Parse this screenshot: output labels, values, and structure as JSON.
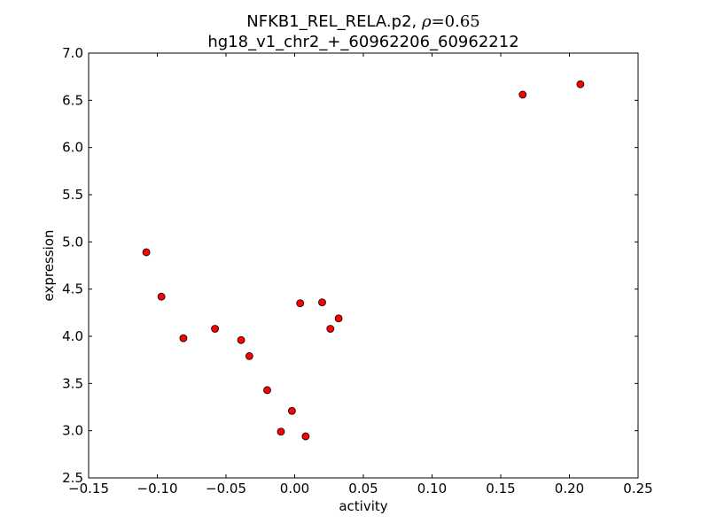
{
  "chart_data": {
    "type": "scatter",
    "title_line1_prefix": "NFKB1_REL_RELA.p2, ",
    "title_rho_symbol": "ρ",
    "title_rho_value": "=0.65",
    "title_line2": "hg18_v1_chr2_+_60962206_60962212",
    "xlabel": "activity",
    "ylabel": "expression",
    "xlim": [
      -0.15,
      0.25
    ],
    "ylim": [
      2.5,
      7.0
    ],
    "xticks": [
      -0.15,
      -0.1,
      -0.05,
      0.0,
      0.05,
      0.1,
      0.15,
      0.2,
      0.25
    ],
    "xtick_labels": [
      "−0.15",
      "−0.10",
      "−0.05",
      "0.00",
      "0.05",
      "0.10",
      "0.15",
      "0.20",
      "0.25"
    ],
    "yticks": [
      2.5,
      3.0,
      3.5,
      4.0,
      4.5,
      5.0,
      5.5,
      6.0,
      6.5,
      7.0
    ],
    "ytick_labels": [
      "2.5",
      "3.0",
      "3.5",
      "4.0",
      "4.5",
      "5.0",
      "5.5",
      "6.0",
      "6.5",
      "7.0"
    ],
    "grid": false,
    "marker_color": "#ff0000",
    "points": [
      {
        "x": -0.108,
        "y": 4.89
      },
      {
        "x": -0.097,
        "y": 4.42
      },
      {
        "x": -0.081,
        "y": 3.98
      },
      {
        "x": -0.058,
        "y": 4.08
      },
      {
        "x": -0.039,
        "y": 3.96
      },
      {
        "x": -0.033,
        "y": 3.79
      },
      {
        "x": -0.02,
        "y": 3.43
      },
      {
        "x": -0.002,
        "y": 3.21
      },
      {
        "x": -0.01,
        "y": 2.99
      },
      {
        "x": 0.008,
        "y": 2.94
      },
      {
        "x": 0.004,
        "y": 4.35
      },
      {
        "x": 0.02,
        "y": 4.36
      },
      {
        "x": 0.026,
        "y": 4.08
      },
      {
        "x": 0.032,
        "y": 4.19
      },
      {
        "x": 0.166,
        "y": 6.56
      },
      {
        "x": 0.208,
        "y": 6.67
      }
    ]
  }
}
